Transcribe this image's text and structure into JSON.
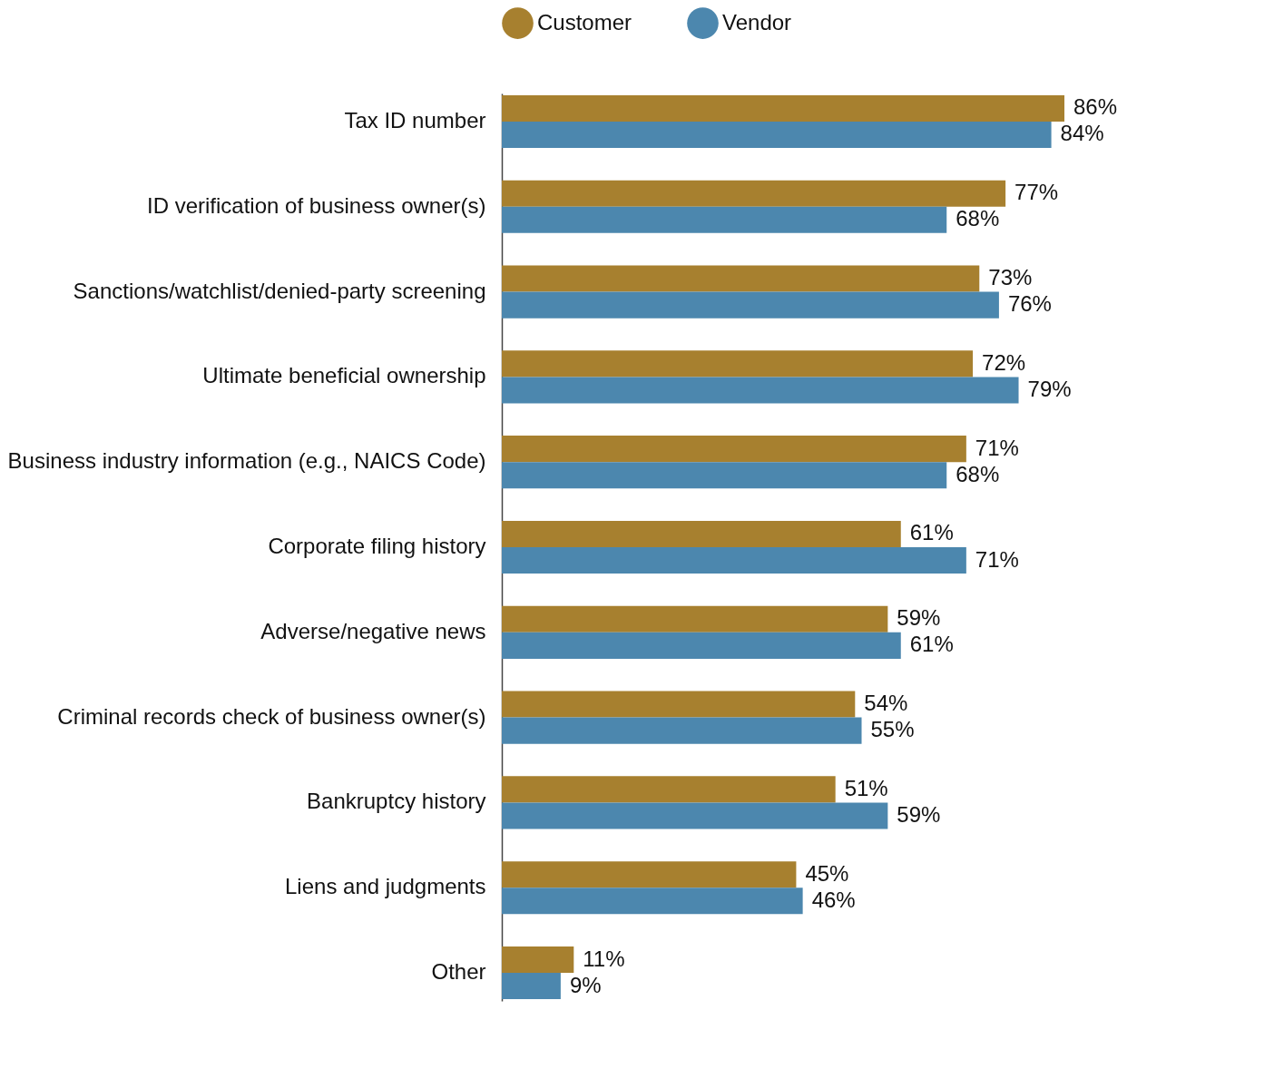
{
  "chart_data": {
    "type": "bar",
    "orientation": "horizontal",
    "categories": [
      "Tax ID number",
      "ID verification of business owner(s)",
      "Sanctions/watchlist/denied-party screening",
      "Ultimate beneficial ownership",
      "Business industry information (e.g., NAICS Code)",
      "Corporate filing history",
      "Adverse/negative news",
      "Criminal records check of business owner(s)",
      "Bankruptcy history",
      "Liens and judgments",
      "Other"
    ],
    "series": [
      {
        "name": "Customer",
        "color": "#a7802f",
        "values": [
          86,
          77,
          73,
          72,
          71,
          61,
          59,
          54,
          51,
          45,
          11
        ],
        "value_labels": [
          "86%",
          "77%",
          "73%",
          "72%",
          "71%",
          "61%",
          "59%",
          "54%",
          "51%",
          "45%",
          "11%"
        ]
      },
      {
        "name": "Vendor",
        "color": "#4c87ae",
        "values": [
          84,
          68,
          76,
          79,
          68,
          71,
          61,
          55,
          59,
          46,
          9
        ],
        "value_labels": [
          "84%",
          "68%",
          "76%",
          "79%",
          "68%",
          "71%",
          "61%",
          "55%",
          "59%",
          "46%",
          "9%"
        ]
      }
    ],
    "legend": "top"
  }
}
